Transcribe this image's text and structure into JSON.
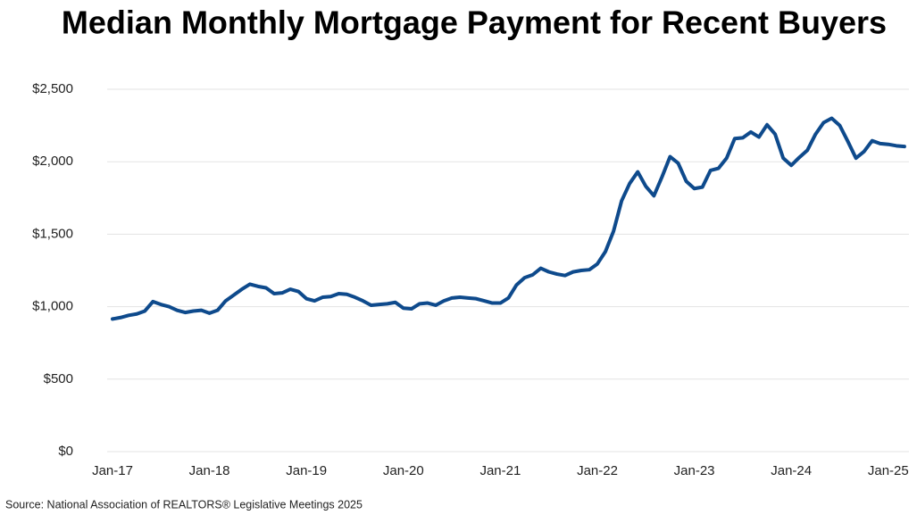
{
  "chart_data": {
    "type": "line",
    "title": "Median Monthly Mortgage Payment for Recent Buyers",
    "source": "Source: National Association of REALTORS® Legislative Meetings 2025",
    "categories": [
      "Jan-17",
      null,
      null,
      null,
      null,
      null,
      null,
      null,
      null,
      null,
      null,
      null,
      "Jan-18",
      null,
      null,
      null,
      null,
      null,
      null,
      null,
      null,
      null,
      null,
      null,
      "Jan-19",
      null,
      null,
      null,
      null,
      null,
      null,
      null,
      null,
      null,
      null,
      null,
      "Jan-20",
      null,
      null,
      null,
      null,
      null,
      null,
      null,
      null,
      null,
      null,
      null,
      "Jan-21",
      null,
      null,
      null,
      null,
      null,
      null,
      null,
      null,
      null,
      null,
      null,
      "Jan-22",
      null,
      null,
      null,
      null,
      null,
      null,
      null,
      null,
      null,
      null,
      null,
      "Jan-23",
      null,
      null,
      null,
      null,
      null,
      null,
      null,
      null,
      null,
      null,
      null,
      "Jan-24",
      null,
      null,
      null,
      null,
      null,
      null,
      null,
      null,
      null,
      null,
      null,
      "Jan-25",
      null,
      null
    ],
    "values": [
      915,
      925,
      940,
      950,
      970,
      1035,
      1015,
      1000,
      975,
      960,
      970,
      975,
      955,
      975,
      1040,
      1080,
      1120,
      1155,
      1140,
      1130,
      1090,
      1095,
      1120,
      1105,
      1055,
      1040,
      1065,
      1070,
      1090,
      1085,
      1065,
      1040,
      1010,
      1015,
      1020,
      1030,
      990,
      985,
      1020,
      1025,
      1010,
      1040,
      1060,
      1065,
      1060,
      1055,
      1040,
      1025,
      1025,
      1060,
      1150,
      1200,
      1220,
      1265,
      1240,
      1225,
      1215,
      1240,
      1250,
      1255,
      1295,
      1380,
      1520,
      1730,
      1850,
      1930,
      1830,
      1765,
      1895,
      2035,
      1990,
      1865,
      1815,
      1825,
      1940,
      1955,
      2025,
      2160,
      2165,
      2205,
      2170,
      2255,
      2190,
      2025,
      1975,
      2030,
      2080,
      2190,
      2270,
      2300,
      2250,
      2140,
      2025,
      2070,
      2145,
      2125,
      2120,
      2110,
      2105
    ],
    "color": "#0e4a8c",
    "ylim": [
      0,
      2500
    ],
    "yticks": [
      {
        "value": 0,
        "label": "$0"
      },
      {
        "value": 500,
        "label": "$500"
      },
      {
        "value": 1000,
        "label": "$1,000"
      },
      {
        "value": 1500,
        "label": "$1,500"
      },
      {
        "value": 2000,
        "label": "$2,000"
      },
      {
        "value": 2500,
        "label": "$2,500"
      }
    ],
    "grid": true
  }
}
